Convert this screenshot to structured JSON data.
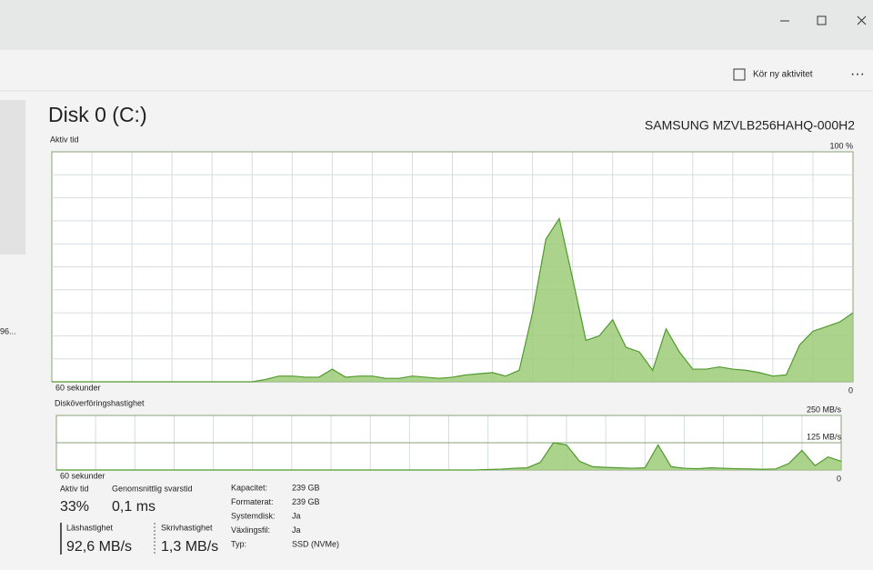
{
  "window": {
    "run_task": "Kör ny aktivitet"
  },
  "left_fragment": "96...",
  "header": {
    "title": "Disk 0 (C:)",
    "model": "SAMSUNG MZVLB256HAHQ-000H2"
  },
  "charts": [
    {
      "type": "area",
      "title": "Aktiv tid",
      "time_label": "60 sekunder",
      "ylim": [
        0,
        100
      ],
      "yticks": [
        0,
        {
          "value": 100,
          "label": "100 %"
        }
      ],
      "color": "#9ccb78",
      "line_color": "#4f9a2b",
      "values": [
        0,
        0,
        0,
        0,
        0,
        0,
        0,
        0,
        0,
        0,
        0,
        0,
        0,
        0,
        0,
        0,
        1,
        2.5,
        2.5,
        2,
        2,
        5.5,
        2,
        2.5,
        2.5,
        1.5,
        1.5,
        2.5,
        2,
        1.5,
        2,
        3,
        3.5,
        4,
        2.5,
        5,
        30,
        62,
        71,
        45,
        18,
        20,
        27,
        15,
        13,
        5,
        23,
        13,
        5.5,
        5.5,
        6.5,
        5.5,
        5,
        4,
        2.5,
        3,
        16,
        22,
        24,
        26,
        30
      ]
    },
    {
      "type": "area",
      "title": "Disköverföringshastighet",
      "time_label": "60 sekunder",
      "ylim": [
        0,
        250
      ],
      "yticks": [
        0,
        {
          "value": 125,
          "label": "125 MB/s"
        },
        {
          "value": 250,
          "label": "250 MB/s"
        }
      ],
      "color": "#9ccb78",
      "line_color": "#4f9a2b",
      "values": [
        0,
        0,
        0,
        0,
        0,
        0,
        0,
        0,
        0,
        0,
        0,
        0,
        0,
        0,
        0,
        0,
        0,
        0,
        0,
        0,
        0,
        0,
        0,
        0,
        0,
        0,
        0,
        0,
        0,
        0,
        0,
        0,
        0,
        2,
        4,
        8,
        10,
        35,
        125,
        115,
        40,
        15,
        12,
        10,
        8,
        10,
        115,
        15,
        8,
        6,
        10,
        8,
        6,
        5,
        3,
        5,
        30,
        90,
        20,
        60,
        40
      ]
    }
  ],
  "stats": [
    {
      "label": "Aktiv tid",
      "value": "33%"
    },
    {
      "label": "Genomsnittlig svarstid",
      "value": "0,1 ms"
    },
    {
      "label": "Läshastighet",
      "value": "92,6 MB/s"
    },
    {
      "label": "Skrivhastighet",
      "value": "1,3 MB/s"
    }
  ],
  "properties": [
    {
      "label": "Kapacitet:",
      "value": "239 GB"
    },
    {
      "label": "Formaterat:",
      "value": "239 GB"
    },
    {
      "label": "Systemdisk:",
      "value": "Ja"
    },
    {
      "label": "Växlingsfil:",
      "value": "Ja"
    },
    {
      "label": "Typ:",
      "value": "SSD (NVMe)"
    }
  ]
}
